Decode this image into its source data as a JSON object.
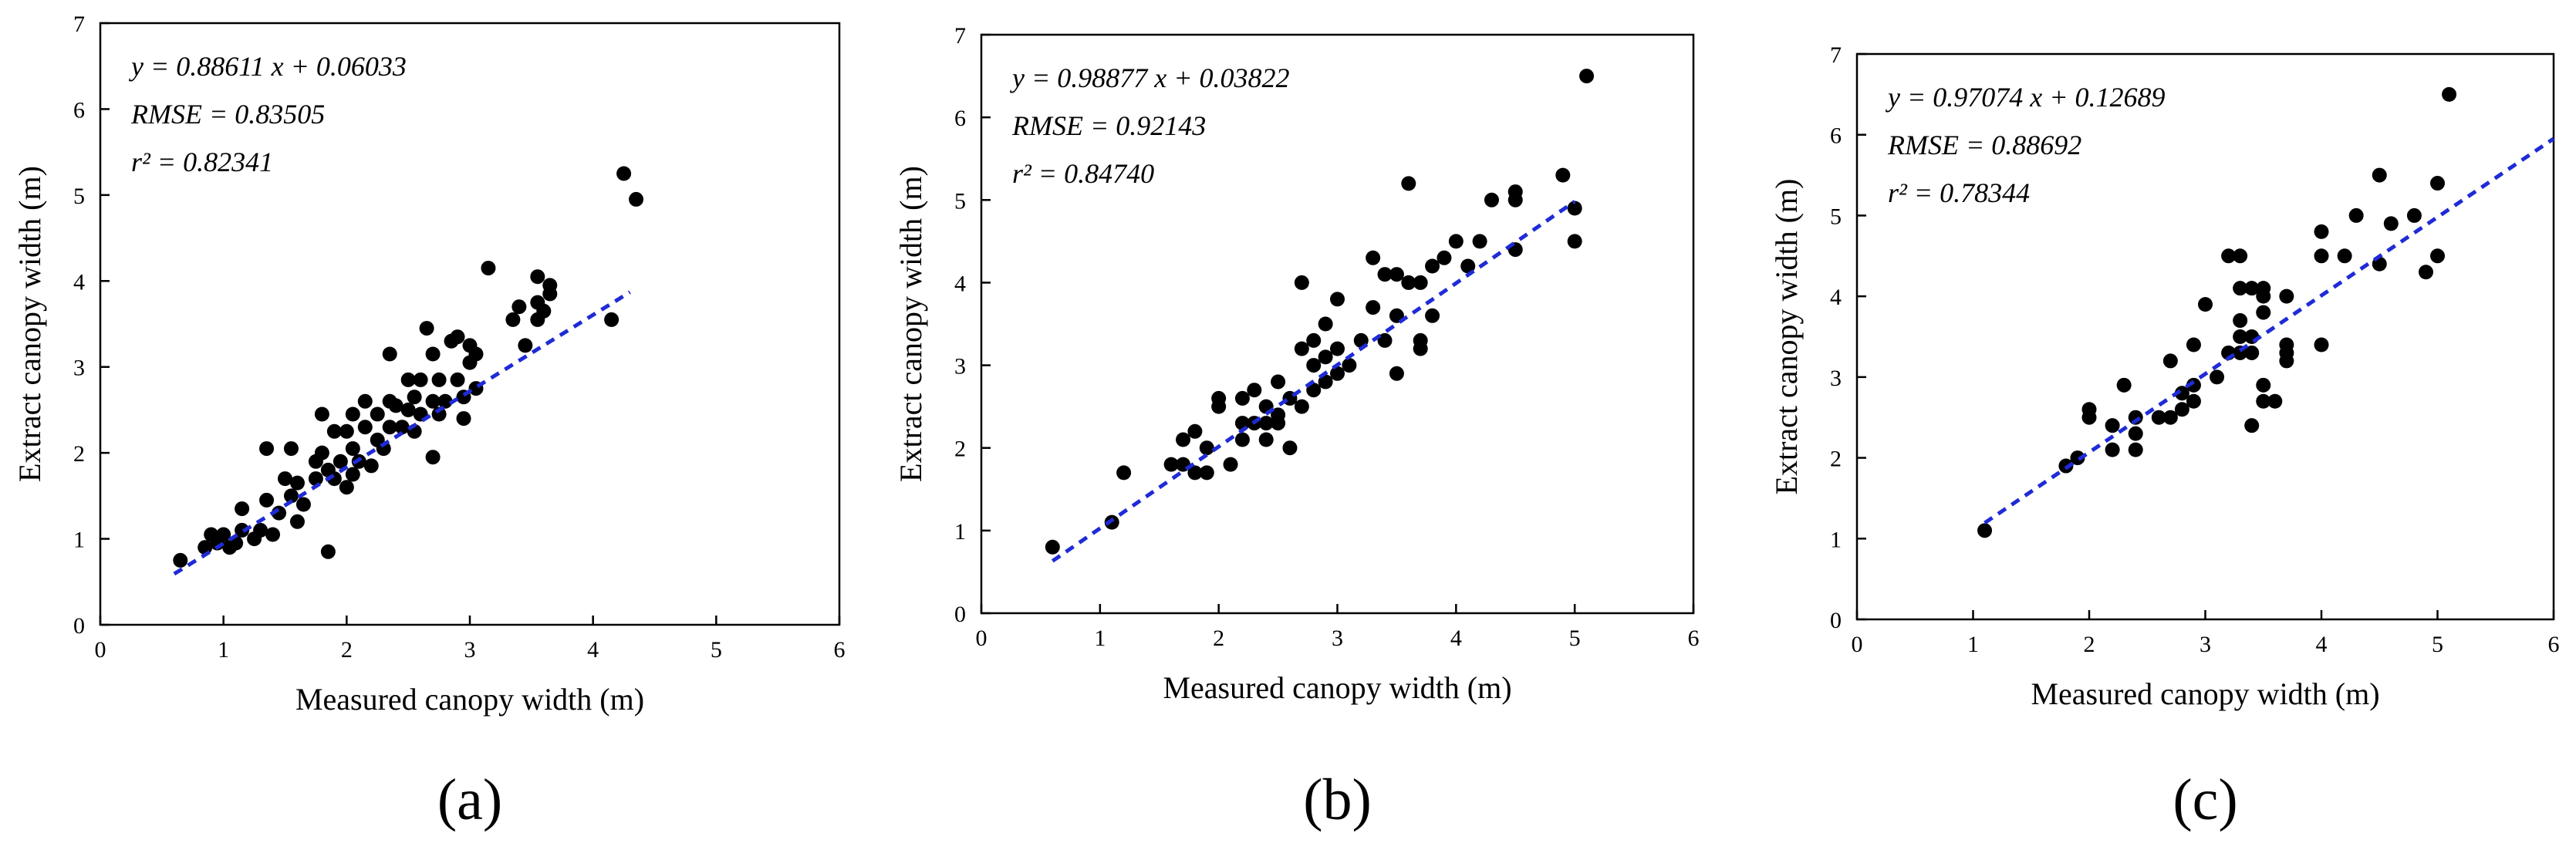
{
  "chart_data": [
    {
      "type": "scatter",
      "panel_label": "(a)",
      "xlabel": "Measured canopy width (m)",
      "ylabel": "Extract canopy width (m)",
      "xlim": [
        0,
        6
      ],
      "ylim": [
        0,
        7
      ],
      "xticks": [
        0,
        1,
        2,
        3,
        4,
        5,
        6
      ],
      "yticks": [
        0,
        1,
        2,
        3,
        4,
        5,
        6,
        7
      ],
      "annotations": [
        "y = 0.88611 x + 0.06033",
        "RMSE = 0.83505",
        "r² = 0.82341"
      ],
      "fit": {
        "slope": 0.88611,
        "intercept": 0.06033,
        "x_range": [
          0.6,
          4.3
        ]
      },
      "points": [
        [
          0.65,
          0.75
        ],
        [
          0.85,
          0.9
        ],
        [
          0.9,
          1.05
        ],
        [
          0.95,
          0.95
        ],
        [
          1.0,
          1.05
        ],
        [
          1.05,
          0.9
        ],
        [
          1.1,
          0.95
        ],
        [
          1.15,
          1.1
        ],
        [
          1.15,
          1.35
        ],
        [
          1.25,
          1.0
        ],
        [
          1.3,
          1.1
        ],
        [
          1.35,
          1.45
        ],
        [
          1.35,
          2.05
        ],
        [
          1.4,
          1.05
        ],
        [
          1.45,
          1.3
        ],
        [
          1.5,
          1.7
        ],
        [
          1.55,
          1.5
        ],
        [
          1.55,
          2.05
        ],
        [
          1.6,
          1.2
        ],
        [
          1.6,
          1.65
        ],
        [
          1.65,
          1.4
        ],
        [
          1.75,
          1.7
        ],
        [
          1.75,
          1.9
        ],
        [
          1.8,
          2.0
        ],
        [
          1.8,
          2.45
        ],
        [
          1.85,
          1.8
        ],
        [
          1.85,
          0.85
        ],
        [
          1.9,
          1.7
        ],
        [
          1.9,
          2.25
        ],
        [
          1.95,
          1.9
        ],
        [
          2.0,
          1.6
        ],
        [
          2.0,
          2.25
        ],
        [
          2.05,
          1.75
        ],
        [
          2.05,
          2.05
        ],
        [
          2.05,
          2.45
        ],
        [
          2.1,
          1.9
        ],
        [
          2.15,
          2.3
        ],
        [
          2.15,
          2.6
        ],
        [
          2.2,
          1.85
        ],
        [
          2.25,
          2.15
        ],
        [
          2.25,
          2.45
        ],
        [
          2.3,
          2.05
        ],
        [
          2.35,
          2.3
        ],
        [
          2.35,
          2.6
        ],
        [
          2.35,
          3.15
        ],
        [
          2.4,
          2.55
        ],
        [
          2.45,
          2.3
        ],
        [
          2.5,
          2.5
        ],
        [
          2.5,
          2.85
        ],
        [
          2.55,
          2.25
        ],
        [
          2.55,
          2.65
        ],
        [
          2.6,
          2.45
        ],
        [
          2.6,
          2.85
        ],
        [
          2.65,
          3.45
        ],
        [
          2.7,
          2.6
        ],
        [
          2.7,
          3.15
        ],
        [
          2.7,
          1.95
        ],
        [
          2.75,
          2.85
        ],
        [
          2.75,
          2.45
        ],
        [
          2.8,
          2.6
        ],
        [
          2.85,
          3.3
        ],
        [
          2.9,
          2.85
        ],
        [
          2.9,
          3.35
        ],
        [
          2.95,
          2.4
        ],
        [
          2.95,
          2.65
        ],
        [
          3.0,
          3.05
        ],
        [
          3.0,
          3.25
        ],
        [
          3.05,
          3.15
        ],
        [
          3.05,
          2.75
        ],
        [
          3.15,
          4.15
        ],
        [
          3.35,
          3.55
        ],
        [
          3.4,
          3.7
        ],
        [
          3.45,
          3.25
        ],
        [
          3.55,
          3.55
        ],
        [
          3.55,
          3.75
        ],
        [
          3.55,
          4.05
        ],
        [
          3.6,
          3.65
        ],
        [
          3.65,
          3.85
        ],
        [
          3.65,
          3.95
        ],
        [
          4.15,
          3.55
        ],
        [
          4.25,
          5.25
        ],
        [
          4.35,
          4.95
        ]
      ]
    },
    {
      "type": "scatter",
      "panel_label": "(b)",
      "xlabel": "Measured canopy width (m)",
      "ylabel": "Extract canopy width (m)",
      "xlim": [
        0,
        6
      ],
      "ylim": [
        0,
        7
      ],
      "xticks": [
        0,
        1,
        2,
        3,
        4,
        5,
        6
      ],
      "yticks": [
        0,
        1,
        2,
        3,
        4,
        5,
        6,
        7
      ],
      "annotations": [
        "y = 0.98877 x + 0.03822",
        "RMSE = 0.92143",
        "r² = 0.84740"
      ],
      "fit": {
        "slope": 0.98877,
        "intercept": 0.03822,
        "x_range": [
          0.6,
          5.0
        ]
      },
      "points": [
        [
          0.6,
          0.8
        ],
        [
          1.1,
          1.1
        ],
        [
          1.2,
          1.7
        ],
        [
          1.6,
          1.8
        ],
        [
          1.7,
          1.8
        ],
        [
          1.7,
          2.1
        ],
        [
          1.8,
          1.7
        ],
        [
          1.8,
          2.2
        ],
        [
          1.9,
          1.7
        ],
        [
          1.9,
          2.0
        ],
        [
          2.0,
          2.5
        ],
        [
          2.0,
          2.6
        ],
        [
          2.1,
          1.8
        ],
        [
          2.2,
          2.1
        ],
        [
          2.2,
          2.3
        ],
        [
          2.2,
          2.6
        ],
        [
          2.3,
          2.3
        ],
        [
          2.3,
          2.7
        ],
        [
          2.4,
          2.1
        ],
        [
          2.4,
          2.3
        ],
        [
          2.4,
          2.5
        ],
        [
          2.5,
          2.3
        ],
        [
          2.5,
          2.4
        ],
        [
          2.5,
          2.8
        ],
        [
          2.6,
          2.0
        ],
        [
          2.6,
          2.6
        ],
        [
          2.7,
          2.5
        ],
        [
          2.7,
          3.2
        ],
        [
          2.7,
          4.0
        ],
        [
          2.8,
          2.7
        ],
        [
          2.8,
          3.0
        ],
        [
          2.8,
          3.3
        ],
        [
          2.9,
          2.8
        ],
        [
          2.9,
          3.1
        ],
        [
          2.9,
          3.5
        ],
        [
          3.0,
          2.9
        ],
        [
          3.0,
          3.2
        ],
        [
          3.0,
          3.8
        ],
        [
          3.1,
          3.0
        ],
        [
          3.2,
          3.3
        ],
        [
          3.3,
          3.7
        ],
        [
          3.3,
          4.3
        ],
        [
          3.4,
          3.3
        ],
        [
          3.4,
          4.1
        ],
        [
          3.5,
          2.9
        ],
        [
          3.5,
          3.6
        ],
        [
          3.5,
          4.1
        ],
        [
          3.6,
          5.2
        ],
        [
          3.6,
          4.0
        ],
        [
          3.7,
          3.2
        ],
        [
          3.7,
          3.3
        ],
        [
          3.7,
          4.0
        ],
        [
          3.8,
          3.6
        ],
        [
          3.8,
          4.2
        ],
        [
          3.9,
          4.3
        ],
        [
          4.0,
          4.5
        ],
        [
          4.1,
          4.2
        ],
        [
          4.2,
          4.5
        ],
        [
          4.3,
          5.0
        ],
        [
          4.5,
          4.4
        ],
        [
          4.5,
          5.0
        ],
        [
          4.5,
          5.1
        ],
        [
          4.9,
          5.3
        ],
        [
          5.0,
          4.5
        ],
        [
          5.0,
          4.9
        ],
        [
          5.1,
          6.5
        ]
      ]
    },
    {
      "type": "scatter",
      "panel_label": "(c)",
      "xlabel": "Measured canopy width (m)",
      "ylabel": "Extract canopy width (m)",
      "xlim": [
        0,
        6
      ],
      "ylim": [
        0,
        7
      ],
      "xticks": [
        0,
        1,
        2,
        3,
        4,
        5,
        6
      ],
      "yticks": [
        0,
        1,
        2,
        3,
        4,
        5,
        6,
        7
      ],
      "annotations": [
        "y = 0.97074 x + 0.12689",
        "RMSE = 0.88692",
        "r² = 0.78344"
      ],
      "fit": {
        "slope": 0.97074,
        "intercept": 0.12689,
        "x_range": [
          1.1,
          6.0
        ]
      },
      "points": [
        [
          1.1,
          1.1
        ],
        [
          1.8,
          1.9
        ],
        [
          1.9,
          2.0
        ],
        [
          2.0,
          2.5
        ],
        [
          2.0,
          2.6
        ],
        [
          2.2,
          2.1
        ],
        [
          2.2,
          2.4
        ],
        [
          2.3,
          2.9
        ],
        [
          2.4,
          2.1
        ],
        [
          2.4,
          2.3
        ],
        [
          2.4,
          2.5
        ],
        [
          2.6,
          2.5
        ],
        [
          2.7,
          2.5
        ],
        [
          2.7,
          3.2
        ],
        [
          2.8,
          2.6
        ],
        [
          2.8,
          2.8
        ],
        [
          2.9,
          2.7
        ],
        [
          2.9,
          2.9
        ],
        [
          2.9,
          3.4
        ],
        [
          3.0,
          3.9
        ],
        [
          3.1,
          3.0
        ],
        [
          3.2,
          3.3
        ],
        [
          3.2,
          4.5
        ],
        [
          3.3,
          3.3
        ],
        [
          3.3,
          3.5
        ],
        [
          3.3,
          3.7
        ],
        [
          3.3,
          4.1
        ],
        [
          3.3,
          4.5
        ],
        [
          3.4,
          2.4
        ],
        [
          3.4,
          3.3
        ],
        [
          3.4,
          3.5
        ],
        [
          3.4,
          4.1
        ],
        [
          3.5,
          2.7
        ],
        [
          3.5,
          2.9
        ],
        [
          3.5,
          3.8
        ],
        [
          3.5,
          4.0
        ],
        [
          3.5,
          4.1
        ],
        [
          3.6,
          2.7
        ],
        [
          3.7,
          3.2
        ],
        [
          3.7,
          3.3
        ],
        [
          3.7,
          3.4
        ],
        [
          3.7,
          4.0
        ],
        [
          4.0,
          3.4
        ],
        [
          4.0,
          4.5
        ],
        [
          4.0,
          4.8
        ],
        [
          4.2,
          4.5
        ],
        [
          4.3,
          5.0
        ],
        [
          4.5,
          4.4
        ],
        [
          4.5,
          5.5
        ],
        [
          4.6,
          4.9
        ],
        [
          4.8,
          5.0
        ],
        [
          4.9,
          4.3
        ],
        [
          5.0,
          4.5
        ],
        [
          5.0,
          5.4
        ],
        [
          5.1,
          6.5
        ]
      ]
    }
  ]
}
